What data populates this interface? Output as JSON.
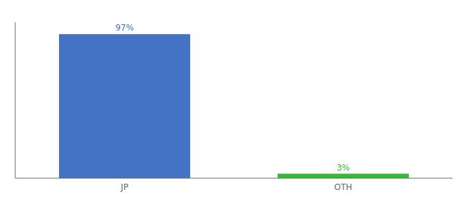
{
  "chart_data": {
    "type": "bar",
    "categories": [
      "JP",
      "OTH"
    ],
    "values": [
      97,
      3
    ],
    "value_labels": [
      "97%",
      "3%"
    ],
    "colors": [
      "#4472c4",
      "#33bb33"
    ],
    "ylim": [
      0,
      105
    ],
    "grid": false,
    "tick_labels": "x"
  }
}
